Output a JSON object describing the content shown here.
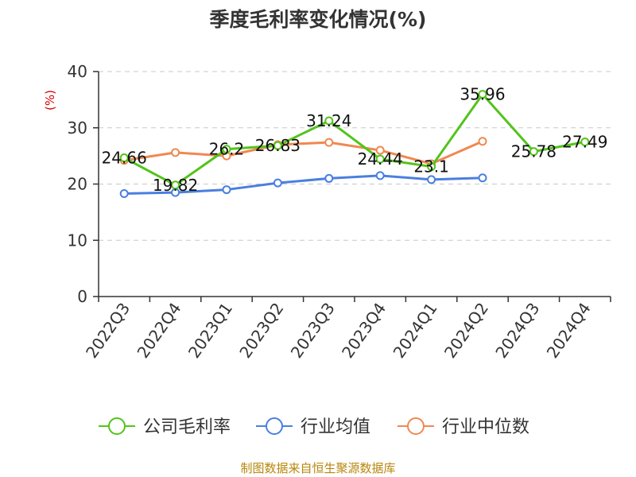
{
  "chart_data": {
    "type": "line",
    "title": "季度毛利率变化情况(%)",
    "ylabel": "(%)",
    "xlabel": "",
    "categories": [
      "2022Q3",
      "2022Q4",
      "2023Q1",
      "2023Q2",
      "2023Q3",
      "2023Q4",
      "2024Q1",
      "2024Q2",
      "2024Q3",
      "2024Q4"
    ],
    "ylim": [
      0,
      40
    ],
    "yticks": [
      0,
      10,
      20,
      30,
      40
    ],
    "grid": "horizontal dashed",
    "legend_position": "bottom",
    "series": [
      {
        "name": "公司毛利率",
        "color": "#52c41a",
        "values": [
          24.66,
          19.82,
          26.2,
          26.83,
          31.24,
          24.44,
          23.1,
          35.96,
          25.78,
          27.49
        ],
        "labels": [
          "24.66",
          "19.82",
          "26.2",
          "26.83",
          "31.24",
          "24.44",
          "23.1",
          "35.96",
          "25.78",
          "27.49"
        ]
      },
      {
        "name": "行业均值",
        "color": "#4a7fe0",
        "values": [
          18.3,
          18.5,
          19.0,
          20.2,
          21.0,
          21.5,
          20.8,
          21.1,
          null,
          null
        ]
      },
      {
        "name": "行业中位数",
        "color": "#f08850",
        "values": [
          24.2,
          25.6,
          25.0,
          27.0,
          27.4,
          26.0,
          23.6,
          27.6,
          null,
          null
        ]
      }
    ]
  },
  "footer": {
    "source": "制图数据来自恒生聚源数据库"
  }
}
